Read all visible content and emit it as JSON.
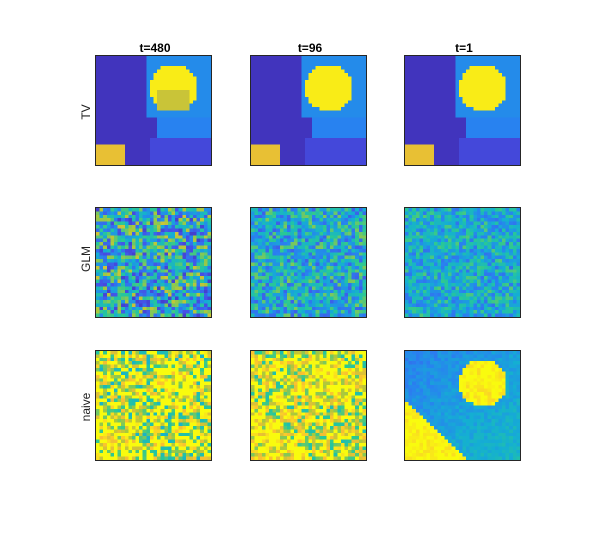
{
  "chart_data": {
    "type": "heatmap",
    "colormap": "parula",
    "columns": [
      "t=480",
      "t=96",
      "t=1"
    ],
    "rows": [
      "TV",
      "GLM",
      "naive"
    ],
    "grid_resolution": 32,
    "panels": [
      {
        "row": "TV",
        "column": "t=480",
        "kind": "tv",
        "noise": 0.25
      },
      {
        "row": "TV",
        "column": "t=96",
        "kind": "tv",
        "noise": 0.0
      },
      {
        "row": "TV",
        "column": "t=1",
        "kind": "tv",
        "noise": 0.0
      },
      {
        "row": "GLM",
        "column": "t=480",
        "kind": "glm",
        "noise": 0.45
      },
      {
        "row": "GLM",
        "column": "t=96",
        "kind": "glm",
        "noise": 0.32
      },
      {
        "row": "GLM",
        "column": "t=1",
        "kind": "glm",
        "noise": 0.25
      },
      {
        "row": "naive",
        "column": "t=480",
        "kind": "naive",
        "noise": 0.55
      },
      {
        "row": "naive",
        "column": "t=96",
        "kind": "naive",
        "noise": 0.45
      },
      {
        "row": "naive",
        "column": "t=1",
        "kind": "naive",
        "noise": 0.08
      }
    ]
  }
}
